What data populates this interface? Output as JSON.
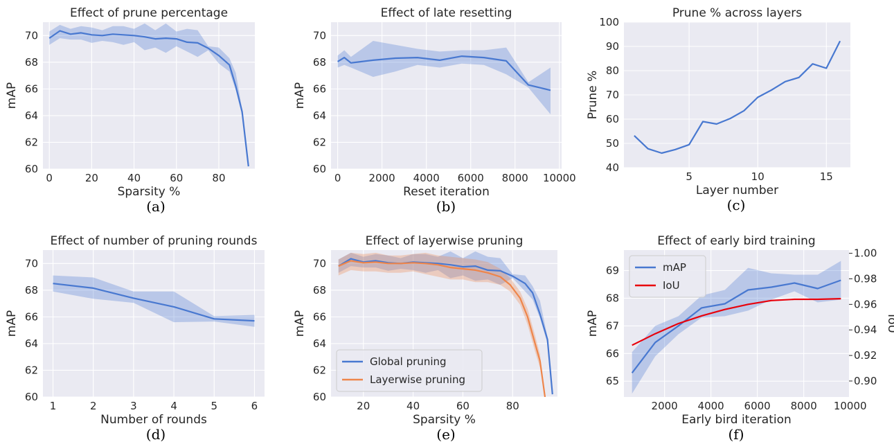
{
  "chart_data": [
    {
      "id": "a",
      "type": "line",
      "title": "Effect of prune percentage",
      "xlabel": "Sparsity %",
      "ylabel": "mAP",
      "caption": "(a)",
      "xlim": [
        -3,
        97
      ],
      "ylim": [
        60,
        71
      ],
      "xticks": [
        0,
        20,
        40,
        60,
        80
      ],
      "yticks": [
        60,
        62,
        64,
        66,
        68,
        70
      ],
      "grid": true,
      "series": [
        {
          "color": "#4878d0",
          "x": [
            0,
            5,
            10,
            15,
            20,
            25,
            30,
            35,
            40,
            45,
            50,
            55,
            60,
            65,
            70,
            75,
            80,
            85,
            88,
            91,
            94
          ],
          "y": [
            69.8,
            70.35,
            70.1,
            70.2,
            70.05,
            70.0,
            70.1,
            70.05,
            70.0,
            69.9,
            69.75,
            69.8,
            69.75,
            69.5,
            69.45,
            69.05,
            68.5,
            67.8,
            66.2,
            64.3,
            60.2
          ],
          "lower": [
            69.3,
            69.8,
            69.7,
            69.7,
            69.45,
            69.6,
            69.5,
            69.3,
            69.5,
            68.9,
            69.1,
            68.7,
            69.2,
            68.8,
            68.4,
            68.9,
            67.9,
            67.3,
            65.9,
            64.0,
            60.2
          ],
          "upper": [
            70.3,
            70.8,
            70.5,
            70.7,
            70.6,
            70.4,
            70.7,
            70.7,
            70.5,
            70.9,
            70.4,
            70.9,
            70.3,
            70.5,
            70.4,
            69.2,
            69.1,
            68.3,
            67.2,
            64.5,
            60.2
          ]
        }
      ]
    },
    {
      "id": "b",
      "type": "line",
      "title": "Effect of late resetting",
      "xlabel": "Reset iteration",
      "ylabel": "mAP",
      "caption": "(b)",
      "xlim": [
        -300,
        10100
      ],
      "ylim": [
        60,
        71
      ],
      "xticks": [
        0,
        2000,
        4000,
        6000,
        8000,
        10000
      ],
      "yticks": [
        60,
        62,
        64,
        66,
        68,
        70
      ],
      "grid": true,
      "series": [
        {
          "color": "#4878d0",
          "x": [
            0,
            300,
            600,
            1600,
            2600,
            3600,
            4600,
            5600,
            6600,
            7600,
            8600,
            9600
          ],
          "y": [
            68.05,
            68.35,
            67.95,
            68.15,
            68.3,
            68.35,
            68.15,
            68.45,
            68.35,
            68.1,
            66.3,
            65.9
          ],
          "lower": [
            67.6,
            67.8,
            67.6,
            66.9,
            67.3,
            67.8,
            67.6,
            67.9,
            67.8,
            67.1,
            66.1,
            64.1
          ],
          "upper": [
            68.5,
            68.9,
            68.4,
            69.6,
            69.3,
            69.0,
            68.8,
            68.9,
            68.9,
            69.1,
            66.5,
            67.6
          ]
        }
      ]
    },
    {
      "id": "c",
      "type": "line",
      "title": "Prune % across layers",
      "xlabel": "Layer number",
      "ylabel": "Prune %",
      "caption": "(c)",
      "xlim": [
        0.25,
        16.75
      ],
      "ylim": [
        40,
        100
      ],
      "xticks": [
        5,
        10,
        15
      ],
      "yticks": [
        40,
        50,
        60,
        70,
        80,
        90,
        100
      ],
      "grid": true,
      "series": [
        {
          "color": "#4878d0",
          "x": [
            1,
            2,
            3,
            4,
            5,
            6,
            7,
            8,
            9,
            10,
            11,
            12,
            13,
            14,
            15,
            16
          ],
          "y": [
            53.2,
            47.8,
            46.0,
            47.5,
            49.5,
            59.0,
            58.0,
            60.3,
            63.5,
            69.0,
            72.0,
            75.5,
            77.2,
            82.8,
            81.0,
            92.2
          ]
        }
      ]
    },
    {
      "id": "d",
      "type": "line",
      "title": "Effect of number of pruning rounds",
      "xlabel": "Number of rounds",
      "ylabel": "mAP",
      "caption": "(d)",
      "xlim": [
        0.75,
        6.25
      ],
      "ylim": [
        60,
        71
      ],
      "xticks": [
        1,
        2,
        3,
        4,
        5,
        6
      ],
      "yticks": [
        60,
        62,
        64,
        66,
        68,
        70
      ],
      "grid": true,
      "series": [
        {
          "color": "#4878d0",
          "x": [
            1,
            2,
            3,
            4,
            5,
            6
          ],
          "y": [
            68.5,
            68.15,
            67.4,
            66.75,
            65.85,
            65.7
          ],
          "lower": [
            67.9,
            67.35,
            67.05,
            65.6,
            65.65,
            65.25
          ],
          "upper": [
            69.1,
            68.95,
            67.9,
            67.9,
            66.05,
            66.15
          ]
        }
      ]
    },
    {
      "id": "e",
      "type": "line",
      "title": "Effect of layerwise pruning",
      "xlabel": "Sparsity %",
      "ylabel": "mAP",
      "caption": "(e)",
      "xlim": [
        7,
        98
      ],
      "ylim": [
        60,
        71
      ],
      "xticks": [
        20,
        40,
        60,
        80
      ],
      "yticks": [
        60,
        62,
        64,
        66,
        68,
        70
      ],
      "grid": true,
      "legend": "lower-left",
      "series": [
        {
          "name": "Global pruning",
          "color": "#4878d0",
          "x": [
            10,
            15,
            20,
            25,
            30,
            35,
            40,
            45,
            50,
            55,
            60,
            65,
            70,
            75,
            80,
            85,
            88,
            91,
            94,
            96
          ],
          "y": [
            69.8,
            70.35,
            70.1,
            70.2,
            70.05,
            70.0,
            70.1,
            70.05,
            70.0,
            69.9,
            69.75,
            69.8,
            69.5,
            69.45,
            69.05,
            68.5,
            67.8,
            66.2,
            64.3,
            60.2
          ],
          "lower": [
            69.3,
            69.8,
            69.7,
            69.7,
            69.45,
            69.6,
            69.5,
            69.3,
            69.5,
            68.9,
            69.1,
            68.7,
            68.8,
            68.4,
            68.9,
            67.9,
            67.3,
            65.9,
            64.0,
            60.2
          ],
          "upper": [
            70.3,
            70.8,
            70.5,
            70.7,
            70.6,
            70.4,
            70.7,
            70.7,
            70.5,
            70.9,
            70.4,
            70.9,
            70.5,
            70.4,
            69.2,
            69.1,
            68.3,
            67.2,
            64.5,
            60.2
          ]
        },
        {
          "name": "Layerwise pruning",
          "color": "#ee854a",
          "x": [
            10,
            15,
            20,
            25,
            30,
            35,
            40,
            45,
            50,
            55,
            60,
            65,
            70,
            75,
            79,
            83,
            86,
            89,
            91,
            93
          ],
          "y": [
            69.8,
            70.2,
            70.05,
            70.1,
            70.0,
            70.0,
            70.05,
            70.0,
            69.9,
            69.7,
            69.6,
            69.5,
            69.3,
            69.0,
            68.4,
            67.4,
            66.0,
            64.0,
            62.7,
            60.0
          ],
          "lower": [
            69.1,
            69.5,
            69.4,
            69.4,
            69.3,
            69.3,
            69.4,
            69.2,
            69.0,
            68.8,
            68.8,
            68.6,
            68.6,
            68.4,
            67.9,
            66.9,
            65.4,
            63.4,
            62.2,
            60.0
          ],
          "upper": [
            70.3,
            70.8,
            70.7,
            70.8,
            70.6,
            70.6,
            70.7,
            70.8,
            70.6,
            70.5,
            70.4,
            70.3,
            70.1,
            69.6,
            68.9,
            67.9,
            66.6,
            64.6,
            63.2,
            60.0
          ]
        }
      ]
    },
    {
      "id": "f",
      "type": "line",
      "title": "Effect of early bird training",
      "xlabel": "Early bird iteration",
      "ylabel": "mAP",
      "ylabel_right": "IoU",
      "caption": "(f)",
      "xlim": [
        250,
        9950
      ],
      "ylim": [
        64.43,
        69.74
      ],
      "ylim_right": [
        0.8875,
        1.0025
      ],
      "xticks": [
        2000,
        4000,
        6000,
        8000,
        10000
      ],
      "yticks": [
        65,
        66,
        67,
        68,
        69
      ],
      "yticks_right": [
        0.9,
        0.92,
        0.94,
        0.96,
        0.98,
        1.0
      ],
      "ytick_labels_right": [
        "0.90",
        "0.92",
        "0.94",
        "0.96",
        "0.98",
        "1.00"
      ],
      "grid": true,
      "legend": "top-left",
      "series": [
        {
          "name": "mAP",
          "color": "#4878d0",
          "axis": "left",
          "x": [
            600,
            1600,
            2600,
            3600,
            4600,
            5600,
            6600,
            7600,
            8600,
            9600
          ],
          "y": [
            65.3,
            66.4,
            67.0,
            67.65,
            67.8,
            68.3,
            68.4,
            68.55,
            68.35,
            68.65
          ],
          "lower": [
            64.55,
            65.9,
            66.7,
            67.3,
            67.35,
            67.55,
            67.95,
            68.25,
            67.85,
            67.95
          ],
          "upper": [
            66.05,
            67.0,
            67.35,
            68.1,
            68.3,
            69.1,
            68.9,
            68.85,
            68.85,
            69.35
          ]
        },
        {
          "name": "IoU",
          "color": "#e8000b",
          "axis": "right",
          "x": [
            600,
            1600,
            2600,
            3600,
            4600,
            5600,
            6600,
            7600,
            8600,
            9600
          ],
          "y": [
            0.928,
            0.937,
            0.945,
            0.951,
            0.956,
            0.96,
            0.963,
            0.964,
            0.964,
            0.9645
          ]
        }
      ]
    }
  ]
}
